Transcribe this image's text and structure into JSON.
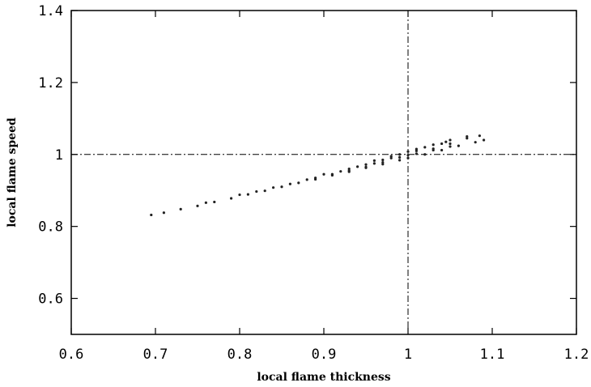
{
  "chart_data": {
    "type": "scatter",
    "title": "",
    "xlabel": "local flame thickness",
    "ylabel": "local flame speed",
    "xlim": [
      0.6,
      1.2
    ],
    "ylim": [
      0.5,
      1.4
    ],
    "x_ticks": [
      0.6,
      0.7,
      0.8,
      0.9,
      1.0,
      1.1,
      1.2
    ],
    "x_tick_labels": [
      "0.6",
      "0.7",
      "0.8",
      "0.9",
      "1",
      "1.1",
      "1.2"
    ],
    "y_ticks": [
      0.6,
      0.8,
      1.0,
      1.2,
      1.4
    ],
    "y_tick_labels": [
      "0.6",
      "0.8",
      "1",
      "1.2",
      "1.4"
    ],
    "reference_lines": {
      "x": 1.0,
      "y": 1.0,
      "style": "dash-dot"
    },
    "grid": false,
    "series": [
      {
        "points": [
          [
            0.695,
            0.832
          ],
          [
            0.71,
            0.838
          ],
          [
            0.73,
            0.848
          ],
          [
            0.75,
            0.857
          ],
          [
            0.77,
            0.868
          ],
          [
            0.79,
            0.878
          ],
          [
            0.81,
            0.889
          ],
          [
            0.83,
            0.899
          ],
          [
            0.85,
            0.91
          ],
          [
            0.87,
            0.921
          ],
          [
            0.89,
            0.931
          ],
          [
            0.91,
            0.942
          ],
          [
            0.93,
            0.952
          ],
          [
            0.95,
            0.963
          ],
          [
            0.97,
            0.973
          ],
          [
            0.99,
            0.984
          ],
          [
            1.0,
            0.99
          ],
          [
            1.02,
            1.0
          ],
          [
            1.04,
            1.012
          ],
          [
            1.06,
            1.024
          ],
          [
            1.08,
            1.034
          ],
          [
            1.09,
            1.04
          ],
          [
            0.76,
            0.866
          ],
          [
            0.8,
            0.888
          ],
          [
            0.84,
            0.908
          ],
          [
            0.88,
            0.93
          ],
          [
            0.92,
            0.953
          ],
          [
            0.96,
            0.975
          ],
          [
            1.0,
            0.998
          ],
          [
            1.03,
            1.016
          ],
          [
            1.05,
            1.03
          ],
          [
            1.07,
            1.045
          ],
          [
            1.085,
            1.052
          ],
          [
            0.82,
            0.897
          ],
          [
            0.86,
            0.918
          ],
          [
            0.9,
            0.945
          ],
          [
            0.94,
            0.966
          ],
          [
            0.98,
            0.99
          ],
          [
            1.01,
            1.01
          ],
          [
            1.045,
            1.035
          ],
          [
            0.89,
            0.935
          ],
          [
            0.91,
            0.945
          ],
          [
            0.93,
            0.955
          ],
          [
            0.95,
            0.965
          ],
          [
            0.97,
            0.978
          ],
          [
            0.99,
            0.992
          ],
          [
            1.01,
            1.002
          ],
          [
            1.03,
            1.012
          ],
          [
            1.05,
            1.022
          ],
          [
            0.93,
            0.96
          ],
          [
            0.95,
            0.972
          ],
          [
            0.97,
            0.985
          ],
          [
            0.99,
            1.0
          ],
          [
            1.01,
            1.015
          ],
          [
            1.03,
            1.027
          ],
          [
            1.05,
            1.04
          ],
          [
            1.07,
            1.05
          ],
          [
            0.96,
            0.983
          ],
          [
            0.98,
            0.995
          ],
          [
            1.0,
            1.008
          ],
          [
            1.02,
            1.02
          ],
          [
            1.04,
            1.03
          ]
        ]
      }
    ]
  }
}
